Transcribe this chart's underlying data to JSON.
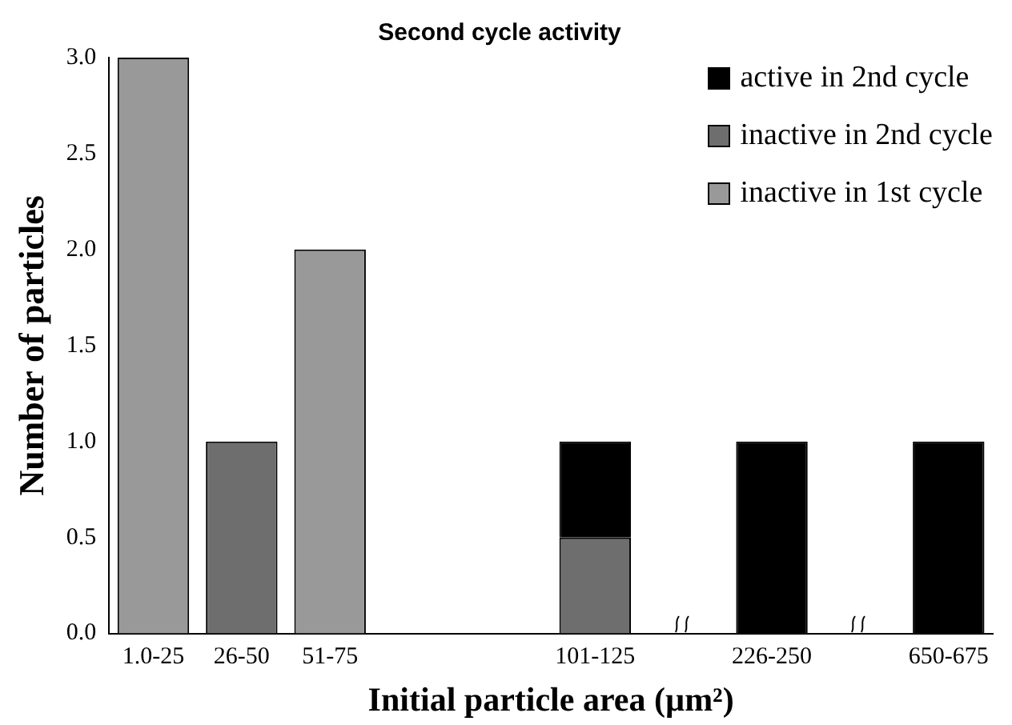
{
  "chart_data": {
    "type": "bar",
    "title": "Second cycle activity",
    "xlabel": "Initial particle area (µm²)",
    "ylabel": "Number of particles",
    "categories": [
      "1.0-25",
      "26-50",
      "51-75",
      null,
      null,
      "101-125",
      null,
      "226-250",
      null,
      "650-675"
    ],
    "stacked": true,
    "series": [
      {
        "name": "inactive in 1st cycle",
        "color": "#999999",
        "values": [
          3,
          0,
          2,
          0,
          0,
          0,
          0,
          0,
          0,
          0
        ]
      },
      {
        "name": "inactive in 2nd cycle",
        "color": "#6e6e6e",
        "values": [
          0,
          1,
          0,
          0,
          0,
          0.5,
          0,
          0,
          0,
          0
        ]
      },
      {
        "name": "active in 2nd cycle",
        "color": "#000000",
        "values": [
          0,
          0,
          0,
          0,
          0,
          0.5,
          0,
          1,
          0,
          1
        ]
      }
    ],
    "ylim": [
      0,
      3
    ],
    "yticks": [
      {
        "value": 0,
        "label": "0.0"
      },
      {
        "value": 0.5,
        "label": "0.5"
      },
      {
        "value": 1,
        "label": "1.0"
      },
      {
        "value": 1.5,
        "label": "1.5"
      },
      {
        "value": 2,
        "label": "2.0"
      },
      {
        "value": 2.5,
        "label": "2.5"
      },
      {
        "value": 3,
        "label": "3.0"
      }
    ],
    "grid": false,
    "legend": "top right"
  }
}
